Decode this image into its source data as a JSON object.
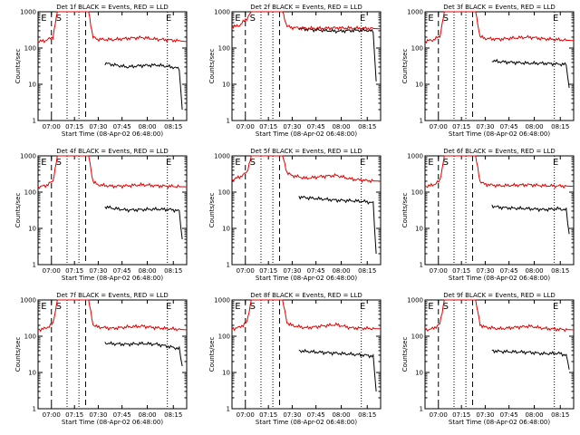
{
  "chart_data": [
    {
      "type": "line",
      "title": "Det 1f BLACK = Events, RED = LLD",
      "xlabel": "Start Time (08-Apr-02 06:48:00)",
      "ylabel": "Counts/sec",
      "yscale": "log",
      "ylim": [
        1,
        1000
      ],
      "x_ticks": [
        "07:00",
        "07:15",
        "07:30",
        "07:45",
        "08:00",
        "08:15"
      ],
      "y_ticks": [
        "1",
        "10",
        "100",
        "1000"
      ],
      "markers": [
        "E",
        "S",
        "E"
      ],
      "series": [
        {
          "name": "Events",
          "color": "#000000",
          "x": [
            0.45,
            0.5,
            0.6,
            0.7,
            0.8,
            0.9,
            0.95,
            0.97
          ],
          "y": [
            38,
            35,
            30,
            33,
            34,
            30,
            27,
            2
          ]
        },
        {
          "name": "LLD",
          "color": "#e00000",
          "x": [
            0,
            0.05,
            0.1,
            0.13,
            0.2,
            0.27,
            0.32,
            0.34,
            0.37,
            0.4,
            0.5,
            0.6,
            0.7,
            0.8,
            0.9,
            1
          ],
          "y": [
            150,
            160,
            200,
            1000,
            1000,
            1000,
            1000,
            1000,
            200,
            175,
            170,
            185,
            195,
            175,
            165,
            150
          ]
        }
      ]
    },
    {
      "type": "line",
      "title": "Det 2f BLACK = Events, RED = LLD",
      "xlabel": "Start Time (08-Apr-02 06:48:00)",
      "ylabel": "Counts/sec",
      "yscale": "log",
      "ylim": [
        1,
        1000
      ],
      "x_ticks": [
        "07:00",
        "07:15",
        "07:30",
        "07:45",
        "08:00",
        "08:15"
      ],
      "y_ticks": [
        "1",
        "10",
        "100",
        "1000"
      ],
      "markers": [
        "E",
        "S",
        "E"
      ],
      "series": [
        {
          "name": "Events",
          "color": "#000000",
          "x": [
            0.45,
            0.5,
            0.6,
            0.7,
            0.8,
            0.9,
            0.95,
            0.97
          ],
          "y": [
            350,
            330,
            310,
            290,
            305,
            310,
            290,
            12
          ]
        },
        {
          "name": "LLD",
          "color": "#e00000",
          "x": [
            0,
            0.05,
            0.1,
            0.13,
            0.2,
            0.27,
            0.32,
            0.34,
            0.37,
            0.4,
            0.5,
            0.6,
            0.7,
            0.8,
            0.9,
            1
          ],
          "y": [
            380,
            420,
            650,
            1000,
            1000,
            1000,
            1000,
            1000,
            400,
            370,
            350,
            350,
            360,
            355,
            350,
            340
          ]
        }
      ]
    },
    {
      "type": "line",
      "title": "Det 3f BLACK = Events, RED = LLD",
      "xlabel": "Start Time (08-Apr-02 06:48:00)",
      "ylabel": "Counts/sec",
      "yscale": "log",
      "ylim": [
        1,
        1000
      ],
      "x_ticks": [
        "07:00",
        "07:15",
        "07:30",
        "07:45",
        "08:00",
        "08:15"
      ],
      "y_ticks": [
        "1",
        "10",
        "100",
        "1000"
      ],
      "markers": [
        "E",
        "S",
        "E"
      ],
      "series": [
        {
          "name": "Events",
          "color": "#000000",
          "x": [
            0.45,
            0.5,
            0.6,
            0.7,
            0.8,
            0.9,
            0.95,
            0.97
          ],
          "y": [
            45,
            42,
            40,
            38,
            38,
            36,
            35,
            8
          ]
        },
        {
          "name": "LLD",
          "color": "#e00000",
          "x": [
            0,
            0.05,
            0.1,
            0.13,
            0.2,
            0.27,
            0.32,
            0.34,
            0.37,
            0.4,
            0.5,
            0.6,
            0.7,
            0.8,
            0.9,
            1
          ],
          "y": [
            155,
            165,
            210,
            1000,
            1000,
            1000,
            1000,
            1000,
            210,
            185,
            175,
            190,
            200,
            180,
            170,
            160
          ]
        }
      ]
    },
    {
      "type": "line",
      "title": "Det 4f BLACK = Events, RED = LLD",
      "xlabel": "Start Time (08-Apr-02 06:48:00)",
      "ylabel": "Counts/sec",
      "yscale": "log",
      "ylim": [
        1,
        1000
      ],
      "x_ticks": [
        "07:00",
        "07:15",
        "07:30",
        "07:45",
        "08:00",
        "08:15"
      ],
      "y_ticks": [
        "1",
        "10",
        "100",
        "1000"
      ],
      "markers": [
        "E",
        "S",
        "E"
      ],
      "series": [
        {
          "name": "Events",
          "color": "#000000",
          "x": [
            0.45,
            0.5,
            0.6,
            0.7,
            0.8,
            0.9,
            0.95,
            0.97
          ],
          "y": [
            40,
            36,
            32,
            33,
            34,
            33,
            30,
            5
          ]
        },
        {
          "name": "LLD",
          "color": "#e00000",
          "x": [
            0,
            0.05,
            0.1,
            0.13,
            0.2,
            0.27,
            0.32,
            0.34,
            0.37,
            0.4,
            0.5,
            0.6,
            0.7,
            0.8,
            0.9,
            1
          ],
          "y": [
            140,
            150,
            200,
            1000,
            1000,
            1000,
            1000,
            1000,
            200,
            160,
            145,
            150,
            160,
            150,
            145,
            140
          ]
        }
      ]
    },
    {
      "type": "line",
      "title": "Det 5f BLACK = Events, RED = LLD",
      "xlabel": "Start Time (08-Apr-02 06:48:00)",
      "ylabel": "Counts/sec",
      "yscale": "log",
      "ylim": [
        1,
        1000
      ],
      "x_ticks": [
        "07:00",
        "07:15",
        "07:30",
        "07:45",
        "08:00",
        "08:15"
      ],
      "y_ticks": [
        "1",
        "10",
        "100",
        "1000"
      ],
      "markers": [
        "E",
        "S",
        "E"
      ],
      "series": [
        {
          "name": "Events",
          "color": "#000000",
          "x": [
            0.45,
            0.5,
            0.6,
            0.7,
            0.8,
            0.9,
            0.95,
            0.97
          ],
          "y": [
            75,
            70,
            65,
            60,
            58,
            55,
            50,
            2
          ]
        },
        {
          "name": "LLD",
          "color": "#e00000",
          "x": [
            0,
            0.05,
            0.1,
            0.13,
            0.2,
            0.27,
            0.32,
            0.34,
            0.37,
            0.4,
            0.5,
            0.6,
            0.7,
            0.8,
            0.9,
            1
          ],
          "y": [
            220,
            260,
            350,
            1000,
            1000,
            1000,
            1000,
            1000,
            350,
            290,
            240,
            270,
            290,
            230,
            210,
            200
          ]
        }
      ]
    },
    {
      "type": "line",
      "title": "Det 6f BLACK = Events, RED = LLD",
      "xlabel": "Start Time (08-Apr-02 06:48:00)",
      "ylabel": "Counts/sec",
      "yscale": "log",
      "ylim": [
        1,
        1000
      ],
      "x_ticks": [
        "07:00",
        "07:15",
        "07:30",
        "07:45",
        "08:00",
        "08:15"
      ],
      "y_ticks": [
        "1",
        "10",
        "100",
        "1000"
      ],
      "markers": [
        "E",
        "S",
        "E"
      ],
      "series": [
        {
          "name": "Events",
          "color": "#000000",
          "x": [
            0.45,
            0.5,
            0.6,
            0.7,
            0.8,
            0.9,
            0.95,
            0.97
          ],
          "y": [
            42,
            38,
            36,
            35,
            33,
            35,
            32,
            7
          ]
        },
        {
          "name": "LLD",
          "color": "#e00000",
          "x": [
            0,
            0.05,
            0.1,
            0.13,
            0.2,
            0.27,
            0.32,
            0.34,
            0.37,
            0.4,
            0.5,
            0.6,
            0.7,
            0.8,
            0.9,
            1
          ],
          "y": [
            145,
            155,
            205,
            1000,
            1000,
            1000,
            1000,
            1000,
            200,
            165,
            150,
            155,
            160,
            150,
            148,
            145
          ]
        }
      ]
    },
    {
      "type": "line",
      "title": "Det 7f BLACK = Events, RED = LLD",
      "xlabel": "Start Time (08-Apr-02 06:48:00)",
      "ylabel": "Counts/sec",
      "yscale": "log",
      "ylim": [
        1,
        1000
      ],
      "x_ticks": [
        "07:00",
        "07:15",
        "07:30",
        "07:45",
        "08:00",
        "08:15"
      ],
      "y_ticks": [
        "1",
        "10",
        "100",
        "1000"
      ],
      "markers": [
        "E",
        "S",
        "E"
      ],
      "series": [
        {
          "name": "Events",
          "color": "#000000",
          "x": [
            0.45,
            0.5,
            0.6,
            0.7,
            0.8,
            0.9,
            0.95,
            0.97
          ],
          "y": [
            65,
            62,
            60,
            63,
            60,
            50,
            45,
            15
          ]
        },
        {
          "name": "LLD",
          "color": "#e00000",
          "x": [
            0,
            0.05,
            0.1,
            0.13,
            0.2,
            0.27,
            0.32,
            0.34,
            0.37,
            0.4,
            0.5,
            0.6,
            0.7,
            0.8,
            0.9,
            1
          ],
          "y": [
            150,
            165,
            220,
            1000,
            1000,
            1000,
            1000,
            1000,
            210,
            180,
            165,
            180,
            190,
            170,
            160,
            150
          ]
        }
      ]
    },
    {
      "type": "line",
      "title": "Det 8f BLACK = Events, RED = LLD",
      "xlabel": "Start Time (08-Apr-02 06:48:00)",
      "ylabel": "Counts/sec",
      "yscale": "log",
      "ylim": [
        1,
        1000
      ],
      "x_ticks": [
        "07:00",
        "07:15",
        "07:30",
        "07:45",
        "08:00",
        "08:15"
      ],
      "y_ticks": [
        "1",
        "10",
        "100",
        "1000"
      ],
      "markers": [
        "E",
        "S",
        "E"
      ],
      "series": [
        {
          "name": "Events",
          "color": "#000000",
          "x": [
            0.45,
            0.5,
            0.6,
            0.7,
            0.8,
            0.9,
            0.95,
            0.97
          ],
          "y": [
            40,
            38,
            36,
            34,
            32,
            30,
            28,
            3
          ]
        },
        {
          "name": "LLD",
          "color": "#e00000",
          "x": [
            0,
            0.05,
            0.1,
            0.13,
            0.2,
            0.27,
            0.32,
            0.34,
            0.37,
            0.4,
            0.5,
            0.6,
            0.7,
            0.8,
            0.9,
            1
          ],
          "y": [
            160,
            175,
            240,
            1000,
            1000,
            1000,
            1000,
            1000,
            240,
            200,
            170,
            190,
            210,
            170,
            165,
            160
          ]
        }
      ]
    },
    {
      "type": "line",
      "title": "Det 9f BLACK = Events, RED = LLD",
      "xlabel": "Start Time (08-Apr-02 06:48:00)",
      "ylabel": "Counts/sec",
      "yscale": "log",
      "ylim": [
        1,
        1000
      ],
      "x_ticks": [
        "07:00",
        "07:15",
        "07:30",
        "07:45",
        "08:00",
        "08:15"
      ],
      "y_ticks": [
        "1",
        "10",
        "100",
        "1000"
      ],
      "markers": [
        "E",
        "S",
        "E"
      ],
      "series": [
        {
          "name": "Events",
          "color": "#000000",
          "x": [
            0.45,
            0.5,
            0.6,
            0.7,
            0.8,
            0.9,
            0.95,
            0.97
          ],
          "y": [
            40,
            38,
            37,
            36,
            33,
            34,
            30,
            12
          ]
        },
        {
          "name": "LLD",
          "color": "#e00000",
          "x": [
            0,
            0.05,
            0.1,
            0.13,
            0.2,
            0.27,
            0.32,
            0.34,
            0.37,
            0.4,
            0.5,
            0.6,
            0.7,
            0.8,
            0.9,
            1
          ],
          "y": [
            150,
            160,
            215,
            1000,
            1000,
            1000,
            1000,
            1000,
            210,
            180,
            160,
            175,
            190,
            165,
            155,
            150
          ]
        }
      ]
    }
  ]
}
